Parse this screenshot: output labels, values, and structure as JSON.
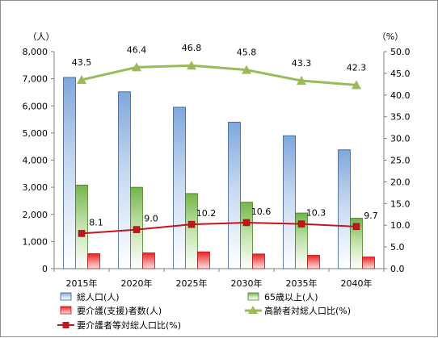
{
  "chart_data": {
    "type": "bar",
    "categories": [
      "2015年",
      "2020年",
      "2025年",
      "2030年",
      "2035年",
      "2040年"
    ],
    "y_left_unit": "（人）",
    "y_right_unit": "（%）",
    "y_left_ticks": [
      "0",
      "1,000",
      "2,000",
      "3,000",
      "4,000",
      "5,000",
      "6,000",
      "7,000",
      "8,000"
    ],
    "y_right_ticks": [
      "0.0",
      "5.0",
      "10.0",
      "15.0",
      "20.0",
      "25.0",
      "30.0",
      "35.0",
      "40.0",
      "45.0",
      "50.0"
    ],
    "ylim_left": [
      0,
      8000
    ],
    "ylim_right": [
      0,
      50
    ],
    "grid": false,
    "legend_position": "bottom",
    "series": [
      {
        "name": "総人口(人)",
        "kind": "bar",
        "axis": "left",
        "color": "#4f81bd",
        "values": [
          7050,
          6520,
          5950,
          5400,
          4900,
          4380
        ]
      },
      {
        "name": "65歳以上(人)",
        "kind": "bar",
        "axis": "left",
        "color": "#5fa83a",
        "values": [
          3080,
          3000,
          2770,
          2450,
          2050,
          1860
        ]
      },
      {
        "name": "要介護(支援)者数(人)",
        "kind": "bar",
        "axis": "left",
        "color": "#e02424",
        "values": [
          550,
          580,
          620,
          540,
          490,
          430
        ]
      },
      {
        "name": "高齢者対総人口比(%)",
        "kind": "line",
        "axis": "right",
        "color": "#9bbb59",
        "marker": "triangle",
        "values": [
          43.5,
          46.4,
          46.8,
          45.8,
          43.3,
          42.3
        ],
        "labels": [
          "43.5",
          "46.4",
          "46.8",
          "45.8",
          "43.3",
          "42.3"
        ]
      },
      {
        "name": "要介護者等対総人口比(%)",
        "kind": "line",
        "axis": "right",
        "color": "#c0161d",
        "marker": "square",
        "values": [
          8.1,
          9.0,
          10.2,
          10.6,
          10.3,
          9.7
        ],
        "labels": [
          "8.1",
          "9.0",
          "10.2",
          "10.6",
          "10.3",
          "9.7"
        ]
      }
    ]
  }
}
